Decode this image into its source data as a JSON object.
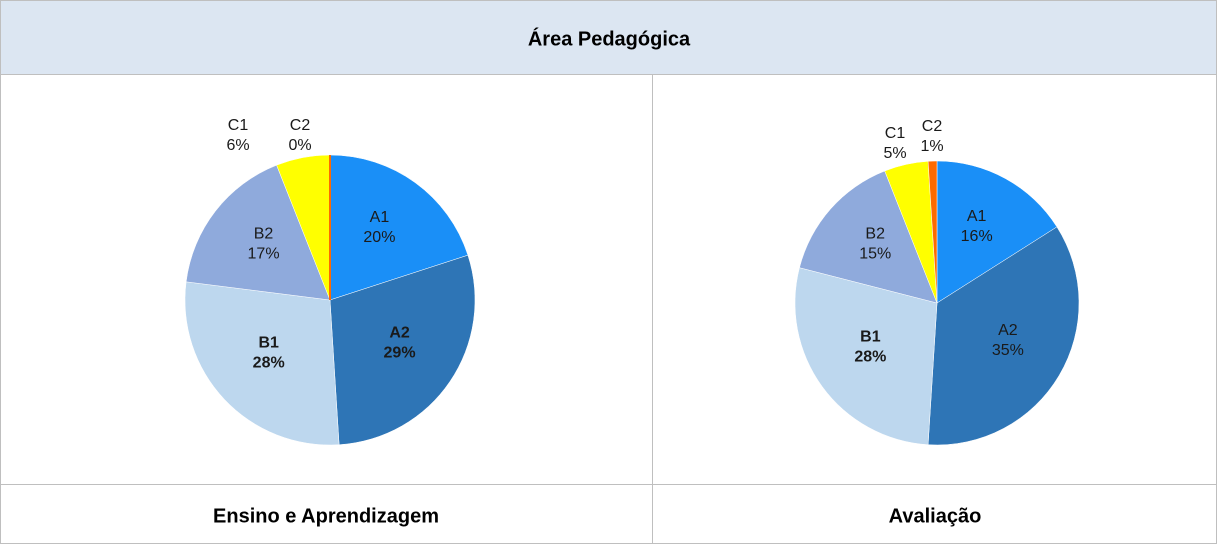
{
  "header": {
    "title": "Área Pedagógica"
  },
  "chart_data": [
    {
      "type": "pie",
      "title": "Ensino e Aprendizagem",
      "categories": [
        "A1",
        "A2",
        "B1",
        "B2",
        "C1",
        "C2"
      ],
      "values": [
        20,
        29,
        28,
        17,
        6,
        0
      ],
      "value_labels": [
        "20%",
        "29%",
        "28%",
        "17%",
        "6%",
        "0%"
      ],
      "colors": [
        "#1a8ff7",
        "#2e75b6",
        "#bdd7ee",
        "#8faadc",
        "#ffff00",
        "#ff6a00"
      ]
    },
    {
      "type": "pie",
      "title": "Avaliação",
      "categories": [
        "A1",
        "A2",
        "B1",
        "B2",
        "C1",
        "C2"
      ],
      "values": [
        16,
        35,
        28,
        15,
        5,
        1
      ],
      "value_labels": [
        "16%",
        "35%",
        "28%",
        "15%",
        "5%",
        "1%"
      ],
      "colors": [
        "#1a8ff7",
        "#2e75b6",
        "#bdd7ee",
        "#8faadc",
        "#ffff00",
        "#ff6a00"
      ]
    }
  ]
}
